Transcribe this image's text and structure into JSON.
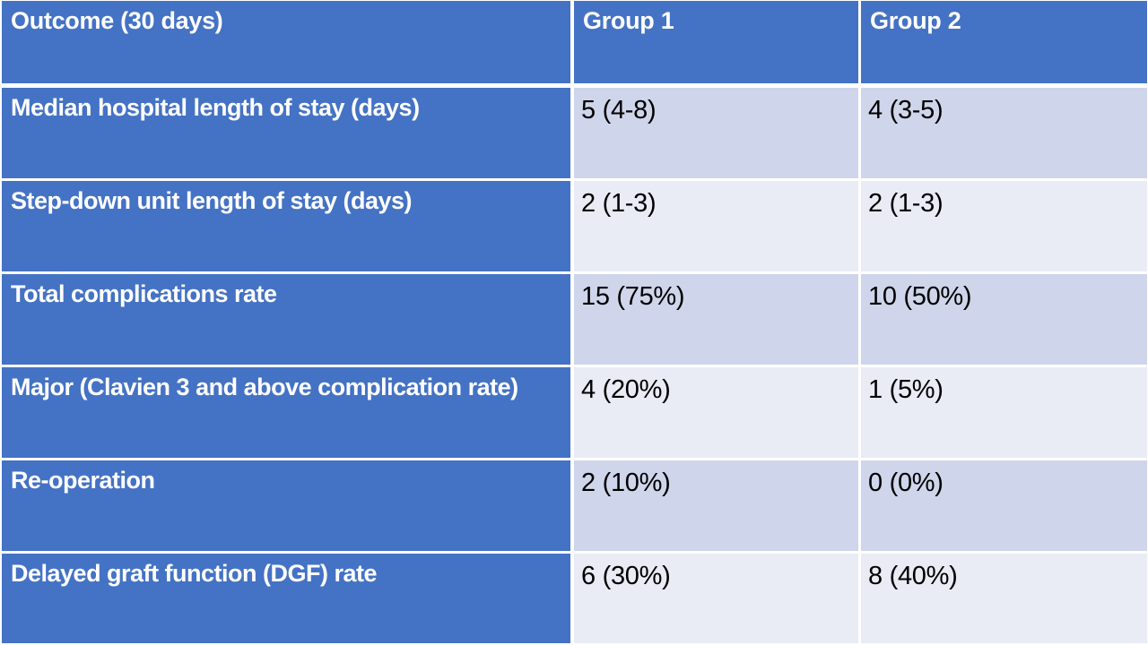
{
  "table": {
    "columns": [
      {
        "label": "Outcome (30 days)"
      },
      {
        "label": "Group 1"
      },
      {
        "label": "Group 2"
      }
    ],
    "rows": [
      {
        "label": "Median hospital length of stay (days)",
        "group1": "5 (4-8)",
        "group2": "4 (3-5)"
      },
      {
        "label": "Step-down unit length of stay (days)",
        "group1": "2 (1-3)",
        "group2": "2 (1-3)"
      },
      {
        "label": "Total complications rate",
        "group1": "15 (75%)",
        "group2": "10 (50%)"
      },
      {
        "label": "Major (Clavien 3 and above complication rate)",
        "group1": "4 (20%)",
        "group2": "1 (5%)"
      },
      {
        "label": "Re-operation",
        "group1": "2 (10%)",
        "group2": "0 (0%)"
      },
      {
        "label": "Delayed graft function (DGF) rate",
        "group1": "6 (30%)",
        "group2": "8 (40%)"
      }
    ],
    "colors": {
      "header_blue": "#4472C4",
      "band_dark": "#CFD5EA",
      "band_light": "#E9EBF5",
      "divider_white": "#FFFFFF",
      "header_text": "#FFFFFF",
      "data_text": "#000000"
    }
  }
}
